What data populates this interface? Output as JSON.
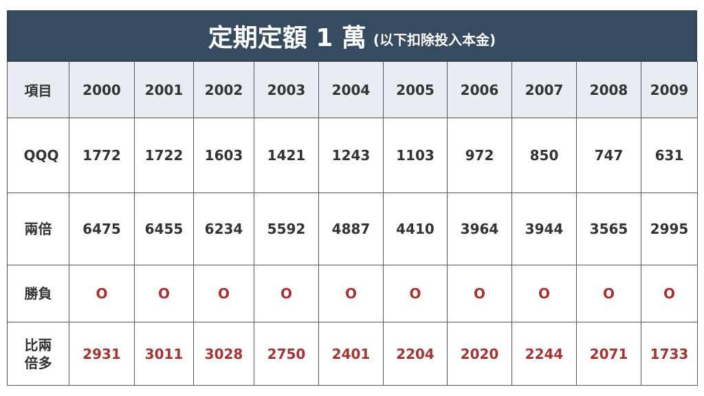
{
  "header": {
    "title": "定期定額 1 萬",
    "subtitle": "(以下扣除投入本金)"
  },
  "table": {
    "columns": [
      "項目",
      "2000",
      "2001",
      "2002",
      "2003",
      "2004",
      "2005",
      "2006",
      "2007",
      "2008",
      "2009"
    ],
    "rows": [
      [
        "QQQ",
        1772,
        1722,
        1603,
        1421,
        1243,
        1103,
        972,
        850,
        747,
        631
      ],
      [
        "兩倍",
        6475,
        6455,
        6234,
        5592,
        4887,
        4410,
        3964,
        3944,
        3565,
        2995
      ],
      [
        "勝負",
        "O",
        "O",
        "O",
        "O",
        "O",
        "O",
        "O",
        "O",
        "O",
        "O"
      ],
      [
        "比兩倍多",
        2931,
        3011,
        3028,
        2750,
        2401,
        2204,
        2020,
        2244,
        2071,
        1733
      ]
    ]
  }
}
